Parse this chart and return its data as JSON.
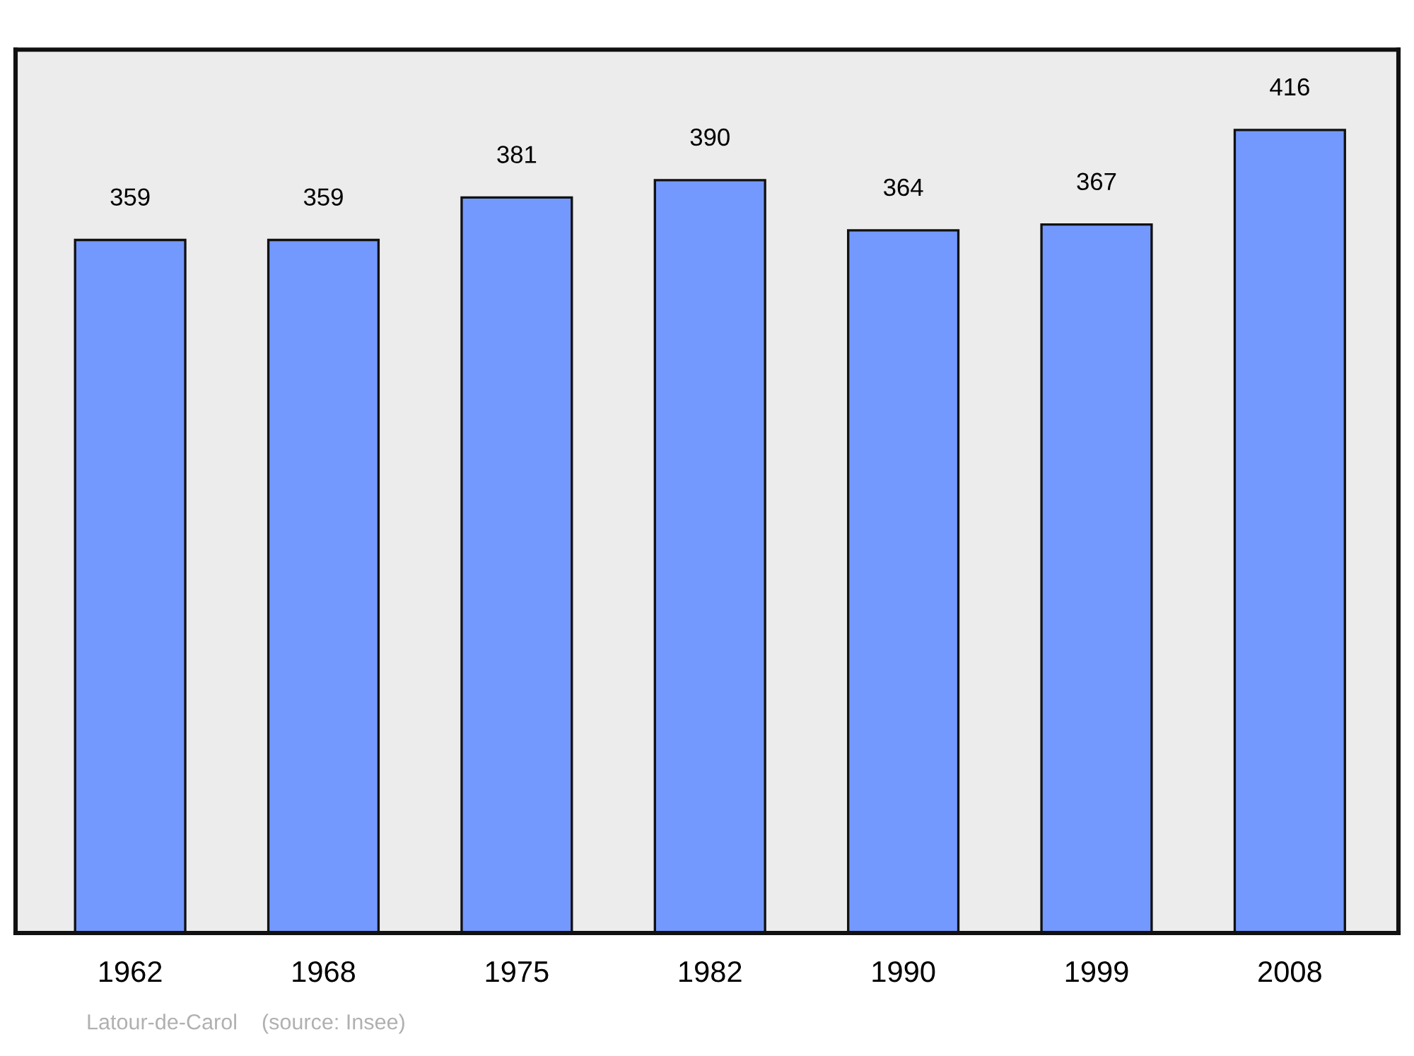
{
  "chart_data": {
    "type": "bar",
    "categories": [
      "1962",
      "1968",
      "1975",
      "1982",
      "1990",
      "1999",
      "2008"
    ],
    "values": [
      359,
      359,
      381,
      390,
      364,
      367,
      416
    ],
    "color": "#7399ff",
    "data_labels": true,
    "grid": false,
    "legend": false,
    "tick_labels": "x",
    "annotations": [
      "Latour-de-Carol    (source: Insee)"
    ]
  }
}
